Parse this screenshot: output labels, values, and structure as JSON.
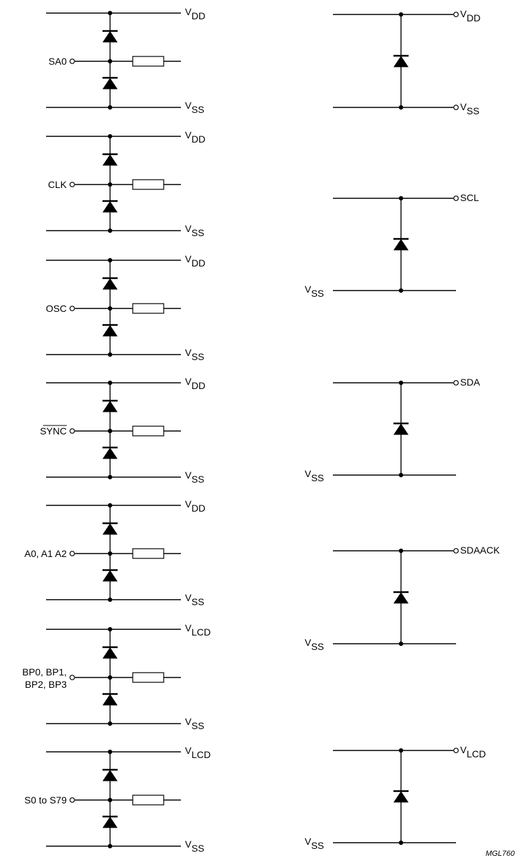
{
  "left_cells": [
    {
      "pin": [
        "SA0"
      ],
      "top_rail": [
        "V",
        "DD"
      ],
      "bottom_rail": [
        "V",
        "SS"
      ]
    },
    {
      "pin": [
        "CLK"
      ],
      "top_rail": [
        "V",
        "DD"
      ],
      "bottom_rail": [
        "V",
        "SS"
      ]
    },
    {
      "pin": [
        "OSC"
      ],
      "top_rail": [
        "V",
        "DD"
      ],
      "bottom_rail": [
        "V",
        "SS"
      ]
    },
    {
      "pin": [
        "SYNC"
      ],
      "overline": true,
      "top_rail": [
        "V",
        "DD"
      ],
      "bottom_rail": [
        "V",
        "SS"
      ]
    },
    {
      "pin": [
        "A0, A1 A2"
      ],
      "top_rail": [
        "V",
        "DD"
      ],
      "bottom_rail": [
        "V",
        "SS"
      ]
    },
    {
      "pin": [
        "BP0, BP1,",
        "BP2, BP3"
      ],
      "top_rail": [
        "V",
        "LCD"
      ],
      "bottom_rail": [
        "V",
        "SS"
      ]
    },
    {
      "pin": [
        "S0 to S79"
      ],
      "top_rail": [
        "V",
        "LCD"
      ],
      "bottom_rail": [
        "V",
        "SS"
      ]
    }
  ],
  "right_cells": [
    {
      "top_label": [
        "V",
        "DD"
      ],
      "bottom_label": [
        "V",
        "SS"
      ],
      "bottom_side": "right"
    },
    {
      "top_label": [
        "SCL",
        ""
      ],
      "bottom_label": [
        "V",
        "SS"
      ],
      "bottom_side": "left"
    },
    {
      "top_label": [
        "SDA",
        ""
      ],
      "bottom_label": [
        "V",
        "SS"
      ],
      "bottom_side": "left"
    },
    {
      "top_label": [
        "SDAACK",
        ""
      ],
      "bottom_label": [
        "V",
        "SS"
      ],
      "bottom_side": "left"
    },
    {
      "top_label": [
        "V",
        "LCD"
      ],
      "bottom_label": [
        "V",
        "SS"
      ],
      "bottom_side": "left"
    }
  ],
  "figure_code": "MGL760"
}
